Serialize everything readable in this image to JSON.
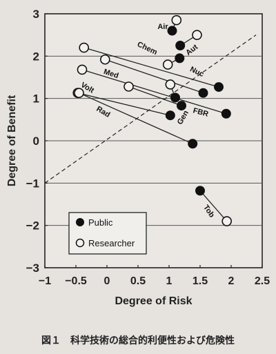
{
  "caption": "図１　科学技術の総合的利便性および危険性",
  "chart_data": {
    "type": "scatter",
    "title": "",
    "xlabel": "Degree of Risk",
    "ylabel": "Degree of Benefit",
    "xlim": [
      -1,
      2.5
    ],
    "ylim": [
      -3,
      3
    ],
    "xticks": [
      -1,
      -0.5,
      0,
      0.5,
      1,
      1.5,
      2,
      2.5
    ],
    "xtick_labels": [
      "−1",
      "−0.5",
      "0",
      "0.5",
      "1",
      "1.5",
      "2",
      "2.5"
    ],
    "yticks": [
      -3,
      -2,
      -1,
      0,
      1,
      2,
      3
    ],
    "ytick_labels": [
      "−3",
      "−2",
      "−1",
      "0",
      "1",
      "2",
      "3"
    ],
    "grid": "horizontal",
    "reference_line": {
      "style": "dashed",
      "points": [
        [
          -1,
          -1
        ],
        [
          2.4,
          2.5
        ]
      ]
    },
    "legend": {
      "position": "bottom-left",
      "entries": [
        {
          "label": "Public",
          "marker": "filled"
        },
        {
          "label": "Researcher",
          "marker": "open"
        }
      ]
    },
    "series": [
      {
        "name": "Public",
        "marker": "filled",
        "color": "#111111"
      },
      {
        "name": "Researcher",
        "marker": "open",
        "color": "#111111"
      }
    ],
    "technologies": [
      {
        "label": "Air",
        "researcher": [
          1.12,
          2.85
        ],
        "public": [
          1.05,
          2.6
        ]
      },
      {
        "label": "Aut",
        "researcher": [
          1.45,
          2.5
        ],
        "public": [
          1.18,
          2.25
        ]
      },
      {
        "label": "Chem",
        "researcher": [
          0.98,
          1.8
        ],
        "public": [
          1.17,
          1.95
        ]
      },
      {
        "label": "Nuc",
        "researcher": [
          -0.37,
          2.2
        ],
        "public": [
          1.8,
          1.27
        ]
      },
      {
        "label": "Med",
        "researcher": [
          -0.03,
          1.92
        ],
        "public": [
          1.55,
          1.13
        ]
      },
      {
        "label": "",
        "researcher": [
          1.02,
          1.33
        ],
        "public": [
          1.1,
          1.02
        ]
      },
      {
        "label": "Gen",
        "researcher": [
          0.35,
          1.28
        ],
        "public": [
          1.2,
          0.83
        ]
      },
      {
        "label": "FBR",
        "researcher": [
          -0.4,
          1.68
        ],
        "public": [
          1.92,
          0.64
        ]
      },
      {
        "label": "Volt",
        "researcher": [
          -0.47,
          1.13
        ],
        "public": [
          1.02,
          0.6
        ]
      },
      {
        "label": "Rad",
        "researcher": [
          -0.45,
          1.13
        ],
        "public": [
          1.38,
          -0.07
        ]
      },
      {
        "label": "Tob",
        "researcher": [
          1.93,
          -1.9
        ],
        "public": [
          1.5,
          -1.18
        ]
      }
    ]
  }
}
